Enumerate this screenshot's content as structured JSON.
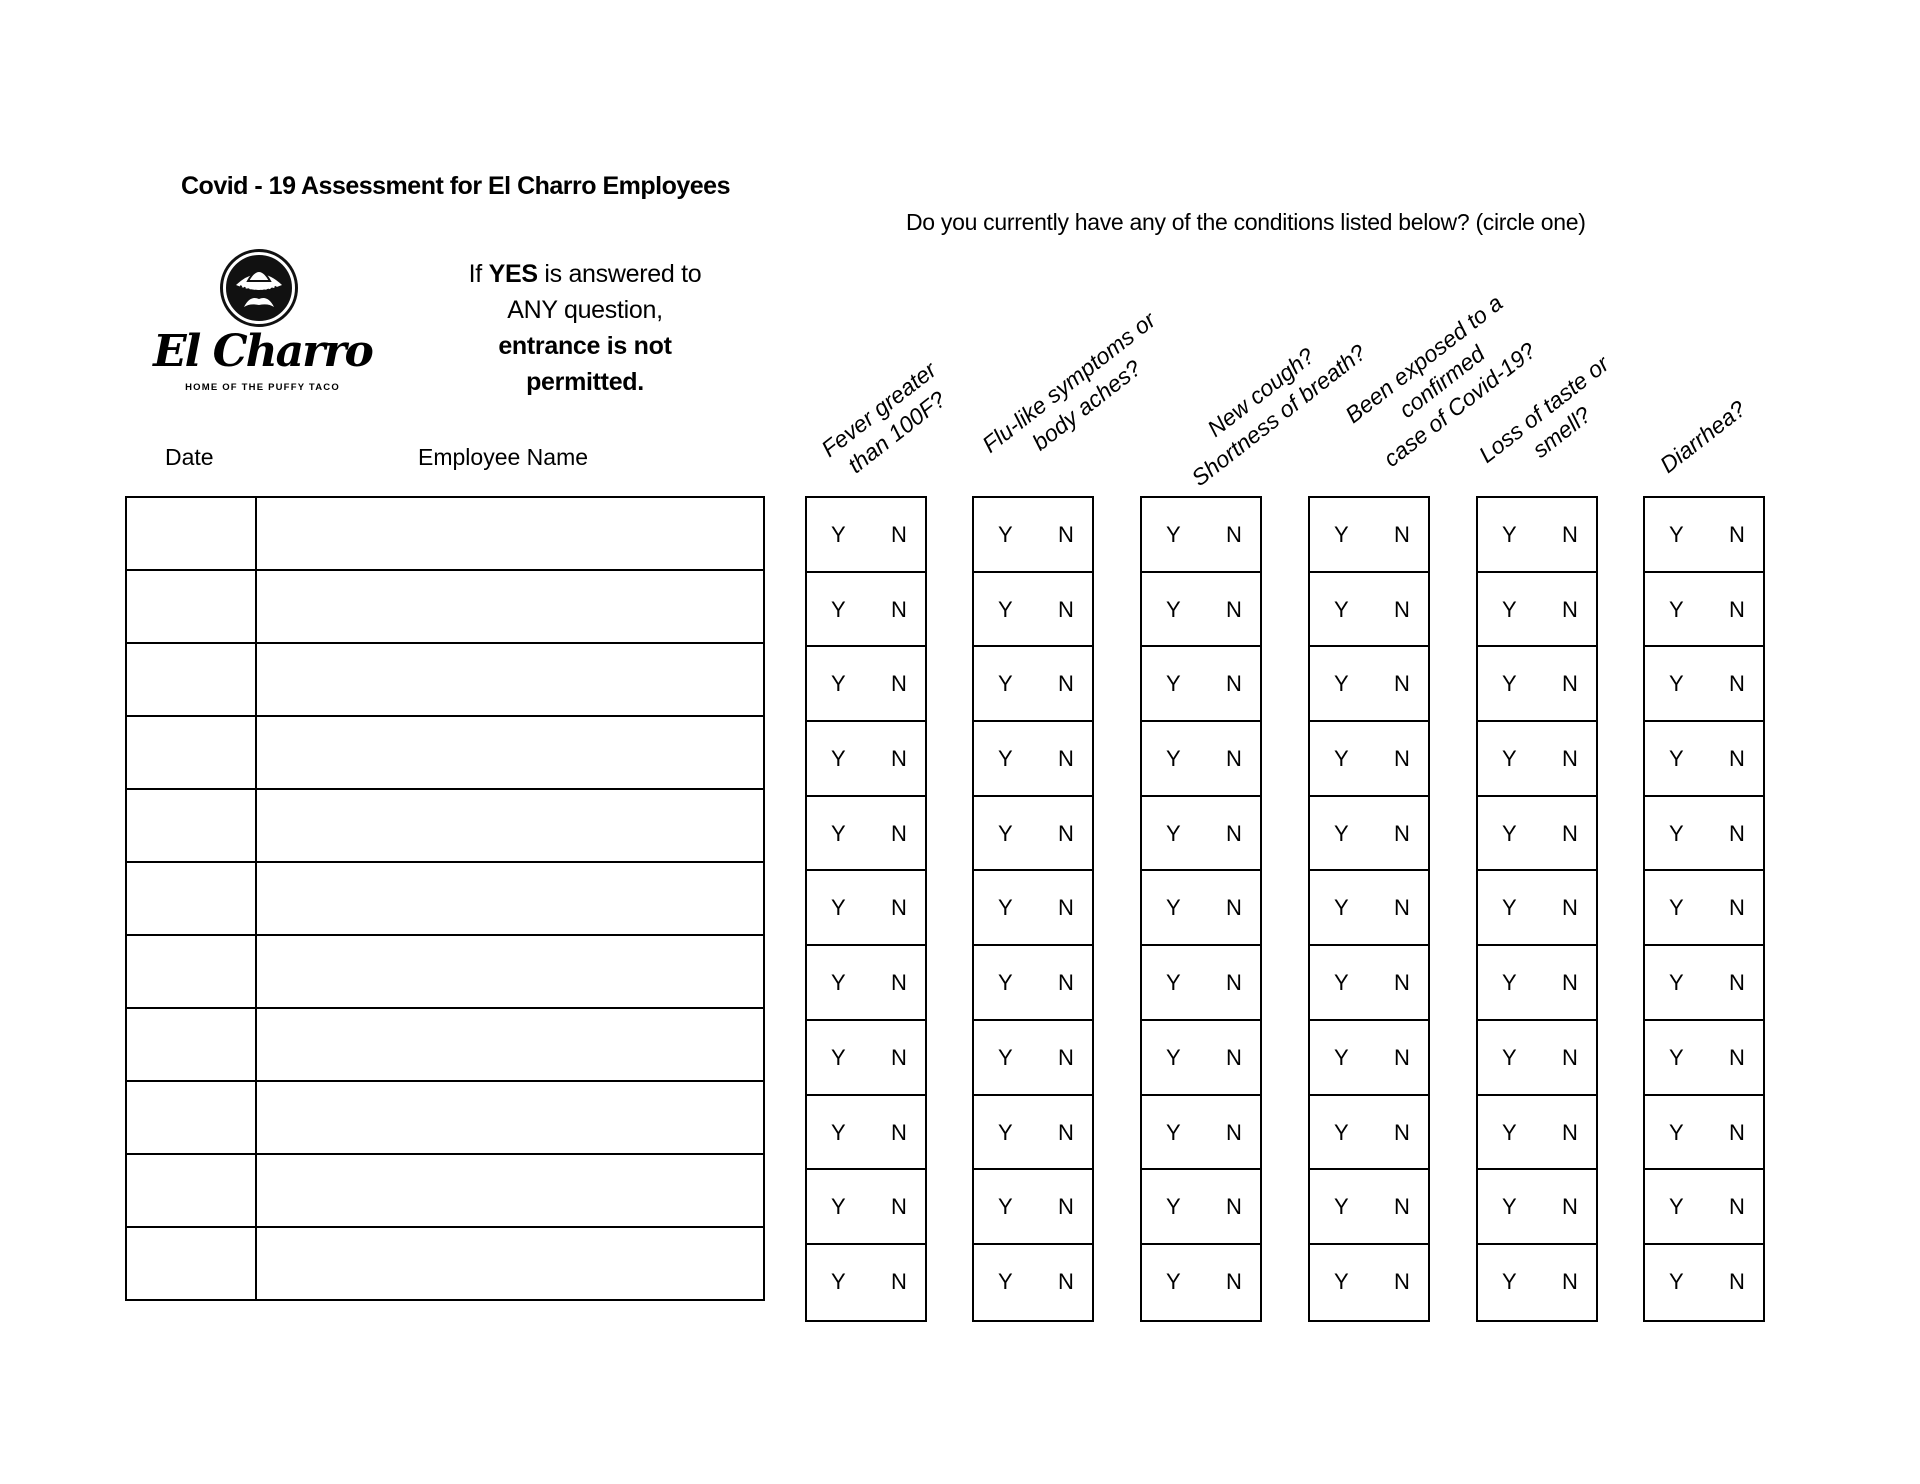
{
  "header": {
    "title": "Covid - 19 Assessment for El Charro Employees",
    "instruction": "Do you currently have any of the conditions listed below? (circle one)"
  },
  "logo": {
    "brand": "El Charro",
    "tagline": "HOME OF THE PUFFY TACO"
  },
  "warning": {
    "prefix": "If ",
    "yes": "YES",
    "suffix": " is answered to",
    "line2": "ANY question,",
    "line3": "entrance is not",
    "line4": "permitted."
  },
  "columns": {
    "date": "Date",
    "employee_name": "Employee Name"
  },
  "questions": [
    {
      "line1": "Fever greater",
      "line2": "than 100F?"
    },
    {
      "line1": "Flu-like symptoms or",
      "line2": "body aches?"
    },
    {
      "line1": "New cough?",
      "line2": "Shortness of breath?"
    },
    {
      "line1": "Been exposed to a confirmed",
      "line2": "case of Covid-19?"
    },
    {
      "line1": "Loss of taste or",
      "line2": "smell?"
    },
    {
      "line1": "Diarrhea?",
      "line2": ""
    }
  ],
  "answer_options": {
    "yes": "Y",
    "no": "N"
  },
  "row_count": 11
}
